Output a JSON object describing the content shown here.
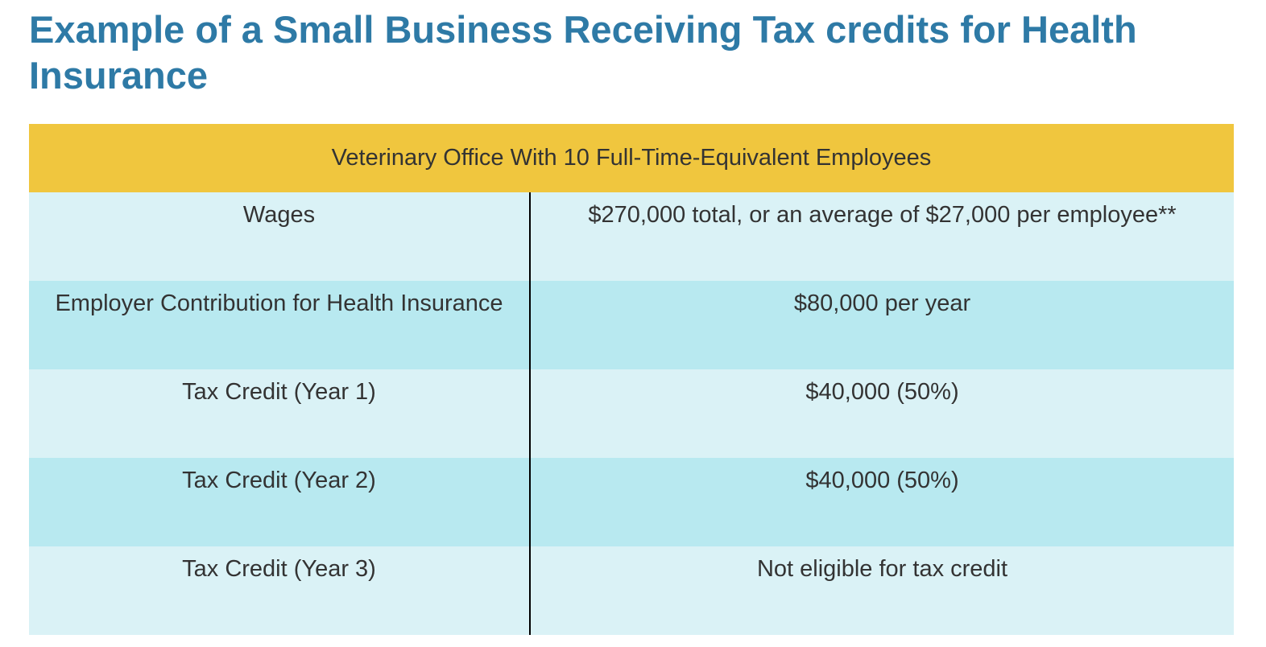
{
  "header": {
    "title": "Example of a Small Business Receiving Tax credits for Health Insurance"
  },
  "table": {
    "caption": "Veterinary Office With 10 Full-Time-Equivalent Employees",
    "rows": [
      [
        "Wages",
        "$270,000 total, or an average of $27,000 per employee**"
      ],
      [
        "Employer Contribution for Health Insurance",
        "$80,000 per year"
      ],
      [
        "Tax Credit (Year 1)",
        "$40,000 (50%)"
      ],
      [
        "Tax Credit (Year 2)",
        "$40,000 (50%)"
      ],
      [
        "Tax Credit (Year 3)",
        "Not eligible for tax credit"
      ]
    ]
  }
}
